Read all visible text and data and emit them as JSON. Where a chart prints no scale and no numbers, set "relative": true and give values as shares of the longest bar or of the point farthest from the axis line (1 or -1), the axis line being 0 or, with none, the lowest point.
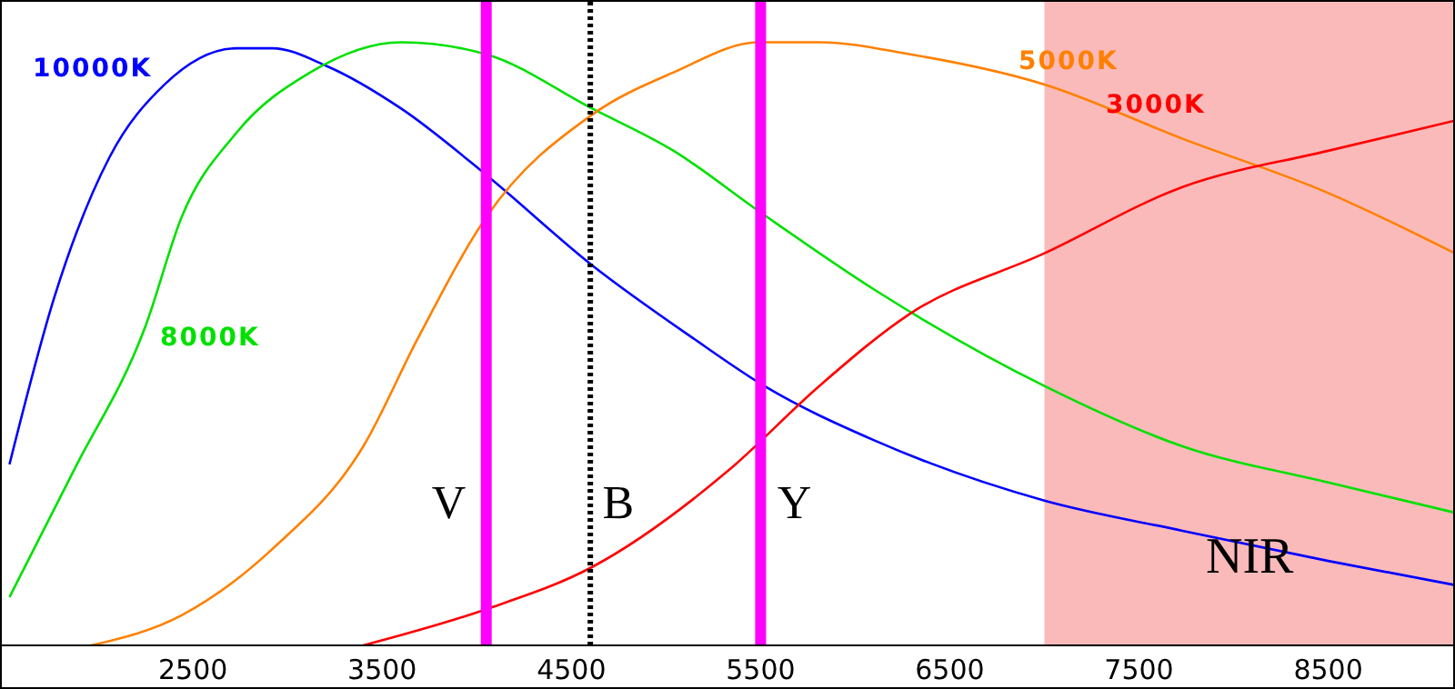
{
  "chart_data": {
    "type": "line",
    "relative": true,
    "xlim": [
      1480,
      9170
    ],
    "xticks": [
      2500,
      3500,
      4500,
      5500,
      6500,
      7500,
      8500
    ],
    "tick_labels": "x",
    "marker": "none",
    "line_style": "solid",
    "series": [
      {
        "name": "10000K",
        "color": "#0000ff",
        "x": [
          1530,
          1770,
          2060,
          2350,
          2730,
          2920,
          3210,
          3600,
          4050,
          4610,
          5140,
          5520,
          6100,
          7000,
          7730,
          8500,
          9170
        ],
        "values": [
          0.3,
          0.58,
          0.81,
          0.93,
          0.99,
          0.99,
          0.96,
          0.89,
          0.78,
          0.63,
          0.51,
          0.43,
          0.34,
          0.24,
          0.19,
          0.14,
          0.1
        ]
      },
      {
        "name": "8000K",
        "color": "#00e000",
        "x": [
          1530,
          1870,
          2250,
          2440,
          2730,
          3120,
          3600,
          4050,
          4610,
          5040,
          5490,
          6100,
          7000,
          7730,
          8500,
          9170
        ],
        "values": [
          0.08,
          0.29,
          0.53,
          0.71,
          0.85,
          0.95,
          1.0,
          0.98,
          0.89,
          0.82,
          0.72,
          0.59,
          0.43,
          0.33,
          0.27,
          0.22
        ]
      },
      {
        "name": "5000K",
        "color": "#ff8000",
        "x": [
          1960,
          2440,
          2920,
          3400,
          3690,
          4050,
          4610,
          5040,
          5490,
          5810,
          6290,
          7000,
          7730,
          8500,
          9170
        ],
        "values": [
          0,
          0.05,
          0.16,
          0.33,
          0.51,
          0.71,
          0.88,
          0.95,
          1.0,
          1.0,
          0.98,
          0.93,
          0.84,
          0.75,
          0.65
        ]
      },
      {
        "name": "3000K",
        "color": "#ff0000",
        "x": [
          3400,
          4050,
          4610,
          5330,
          5810,
          6290,
          7000,
          7730,
          8500,
          9170
        ],
        "values": [
          0,
          0.06,
          0.13,
          0.29,
          0.43,
          0.55,
          0.65,
          0.76,
          0.82,
          0.87
        ]
      }
    ],
    "ref_lines": [
      {
        "axis": "x",
        "value": 4050,
        "label": "V",
        "color": "#ff00ff",
        "line_style": "solid"
      },
      {
        "axis": "x",
        "value": 4600,
        "label": "B",
        "color": "#000000",
        "line_style": "dotted"
      },
      {
        "axis": "x",
        "value": 5500,
        "label": "Y",
        "color": "#ff00ff",
        "line_style": "solid"
      }
    ],
    "bands": [
      {
        "axis": "x",
        "from": 7000,
        "to": 9170,
        "label": "NIR",
        "color": "#fbbaba"
      }
    ]
  }
}
